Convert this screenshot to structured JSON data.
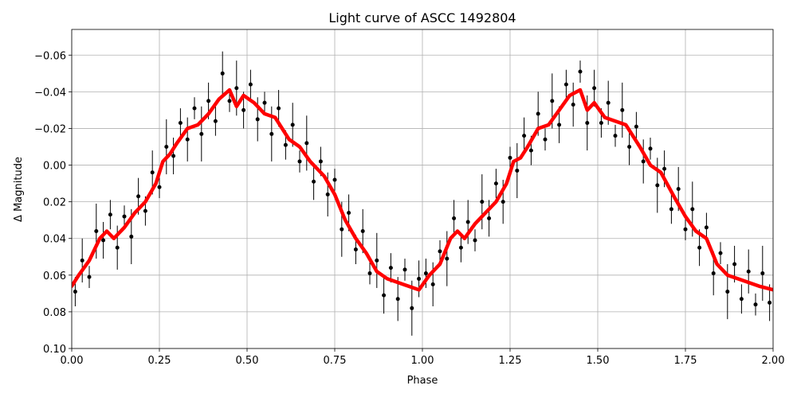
{
  "chart_data": {
    "type": "scatter",
    "title": "Light curve of ASCC 1492804",
    "xlabel": "Phase",
    "ylabel": "Δ Magnitude",
    "xlim": [
      0,
      2
    ],
    "ylim": [
      0.1,
      -0.074
    ],
    "grid": true,
    "xticks": [
      {
        "value": 0,
        "label": "0.00"
      },
      {
        "value": 0.25,
        "label": "0.25"
      },
      {
        "value": 0.5,
        "label": "0.50"
      },
      {
        "value": 0.75,
        "label": "0.75"
      },
      {
        "value": 1,
        "label": "1.00"
      },
      {
        "value": 1.25,
        "label": "1.25"
      },
      {
        "value": 1.5,
        "label": "1.50"
      },
      {
        "value": 1.75,
        "label": "1.75"
      },
      {
        "value": 2,
        "label": "2.00"
      }
    ],
    "yticks": [
      {
        "value": -0.06,
        "label": "−0.06"
      },
      {
        "value": -0.04,
        "label": "−0.04"
      },
      {
        "value": -0.02,
        "label": "−0.02"
      },
      {
        "value": 0,
        "label": "0.00"
      },
      {
        "value": 0.02,
        "label": "0.02"
      },
      {
        "value": 0.04,
        "label": "0.04"
      },
      {
        "value": 0.06,
        "label": "0.06"
      },
      {
        "value": 0.08,
        "label": "0.08"
      },
      {
        "value": 0.1,
        "label": "0.10"
      }
    ],
    "series": [
      {
        "type": "errorbar",
        "color": "#000000",
        "x": [
          0.01,
          0.03,
          0.05,
          0.07,
          0.09,
          0.11,
          0.13,
          0.15,
          0.17,
          0.19,
          0.21,
          0.23,
          0.25,
          0.27,
          0.29,
          0.31,
          0.33,
          0.35,
          0.37,
          0.39,
          0.41,
          0.43,
          0.45,
          0.47,
          0.49,
          0.51,
          0.53,
          0.55,
          0.57,
          0.59,
          0.61,
          0.63,
          0.65,
          0.67,
          0.69,
          0.71,
          0.73,
          0.75,
          0.77,
          0.79,
          0.81,
          0.83,
          0.85,
          0.87,
          0.89,
          0.91,
          0.93,
          0.95,
          0.97,
          0.99,
          1.01,
          1.03,
          1.05,
          1.07,
          1.09,
          1.11,
          1.13,
          1.15,
          1.17,
          1.19,
          1.21,
          1.23,
          1.25,
          1.27,
          1.29,
          1.31,
          1.33,
          1.35,
          1.37,
          1.39,
          1.41,
          1.43,
          1.45,
          1.47,
          1.49,
          1.51,
          1.53,
          1.55,
          1.57,
          1.59,
          1.61,
          1.63,
          1.65,
          1.67,
          1.69,
          1.71,
          1.73,
          1.75,
          1.77,
          1.79,
          1.81,
          1.83,
          1.85,
          1.87,
          1.89,
          1.91,
          1.93,
          1.95,
          1.97,
          1.99
        ],
        "values": [
          0.069,
          0.052,
          0.061,
          0.036,
          0.041,
          0.027,
          0.045,
          0.028,
          0.039,
          0.017,
          0.025,
          0.004,
          0.012,
          -0.01,
          -0.005,
          -0.023,
          -0.014,
          -0.031,
          -0.017,
          -0.035,
          -0.024,
          -0.05,
          -0.035,
          -0.042,
          -0.03,
          -0.044,
          -0.025,
          -0.034,
          -0.017,
          -0.031,
          -0.011,
          -0.022,
          -0.002,
          -0.012,
          0.009,
          -0.002,
          0.016,
          0.008,
          0.035,
          0.026,
          0.046,
          0.036,
          0.059,
          0.052,
          0.071,
          0.056,
          0.073,
          0.057,
          0.078,
          0.062,
          0.059,
          0.065,
          0.047,
          0.051,
          0.029,
          0.045,
          0.031,
          0.041,
          0.02,
          0.029,
          0.01,
          0.02,
          -0.004,
          0.003,
          -0.016,
          -0.008,
          -0.028,
          -0.014,
          -0.035,
          -0.022,
          -0.044,
          -0.033,
          -0.051,
          -0.023,
          -0.042,
          -0.023,
          -0.034,
          -0.016,
          -0.03,
          -0.01,
          -0.021,
          -0.002,
          -0.009,
          0.011,
          0.002,
          0.024,
          0.013,
          0.035,
          0.024,
          0.045,
          0.034,
          0.059,
          0.048,
          0.069,
          0.054,
          0.073,
          0.058,
          0.076,
          0.059,
          0.075
        ],
        "errors": [
          0.008,
          0.012,
          0.006,
          0.015,
          0.01,
          0.008,
          0.012,
          0.006,
          0.015,
          0.01,
          0.008,
          0.012,
          0.006,
          0.015,
          0.01,
          0.008,
          0.012,
          0.006,
          0.015,
          0.01,
          0.008,
          0.012,
          0.006,
          0.015,
          0.01,
          0.008,
          0.012,
          0.006,
          0.015,
          0.01,
          0.008,
          0.012,
          0.006,
          0.015,
          0.01,
          0.008,
          0.012,
          0.006,
          0.015,
          0.01,
          0.008,
          0.012,
          0.006,
          0.015,
          0.01,
          0.008,
          0.012,
          0.006,
          0.015,
          0.01,
          0.008,
          0.012,
          0.006,
          0.015,
          0.01,
          0.008,
          0.012,
          0.006,
          0.015,
          0.01,
          0.008,
          0.012,
          0.006,
          0.015,
          0.01,
          0.008,
          0.012,
          0.006,
          0.015,
          0.01,
          0.008,
          0.012,
          0.006,
          0.015,
          0.01,
          0.008,
          0.012,
          0.006,
          0.015,
          0.01,
          0.008,
          0.012,
          0.006,
          0.015,
          0.01,
          0.008,
          0.012,
          0.006,
          0.015,
          0.01,
          0.008,
          0.012,
          0.006,
          0.015,
          0.01,
          0.008,
          0.012,
          0.006,
          0.015,
          0.01
        ]
      },
      {
        "type": "line",
        "color": "#ff0000",
        "x": [
          0,
          0.02,
          0.05,
          0.08,
          0.1,
          0.12,
          0.15,
          0.18,
          0.21,
          0.24,
          0.26,
          0.28,
          0.3,
          0.33,
          0.36,
          0.39,
          0.42,
          0.45,
          0.47,
          0.49,
          0.52,
          0.55,
          0.58,
          0.62,
          0.65,
          0.68,
          0.72,
          0.75,
          0.78,
          0.81,
          0.84,
          0.87,
          0.9,
          0.93,
          0.96,
          0.99,
          1.02,
          1.05,
          1.08,
          1.1,
          1.12,
          1.15,
          1.18,
          1.21,
          1.24,
          1.26,
          1.28,
          1.3,
          1.33,
          1.36,
          1.39,
          1.42,
          1.45,
          1.47,
          1.49,
          1.52,
          1.55,
          1.58,
          1.62,
          1.65,
          1.68,
          1.72,
          1.75,
          1.78,
          1.81,
          1.84,
          1.87,
          1.9,
          1.93,
          1.96,
          2
        ],
        "values": [
          0.066,
          0.06,
          0.052,
          0.04,
          0.036,
          0.04,
          0.034,
          0.026,
          0.02,
          0.01,
          -0.002,
          -0.006,
          -0.012,
          -0.02,
          -0.022,
          -0.028,
          -0.036,
          -0.041,
          -0.032,
          -0.038,
          -0.034,
          -0.028,
          -0.026,
          -0.014,
          -0.01,
          -0.002,
          0.006,
          0.016,
          0.03,
          0.04,
          0.048,
          0.058,
          0.062,
          0.064,
          0.066,
          0.068,
          0.06,
          0.054,
          0.04,
          0.036,
          0.04,
          0.032,
          0.026,
          0.02,
          0.01,
          -0.002,
          -0.004,
          -0.01,
          -0.02,
          -0.022,
          -0.03,
          -0.038,
          -0.041,
          -0.03,
          -0.034,
          -0.026,
          -0.024,
          -0.022,
          -0.01,
          0,
          0.004,
          0.018,
          0.028,
          0.036,
          0.04,
          0.054,
          0.06,
          0.062,
          0.064,
          0.066,
          0.068
        ]
      }
    ]
  }
}
